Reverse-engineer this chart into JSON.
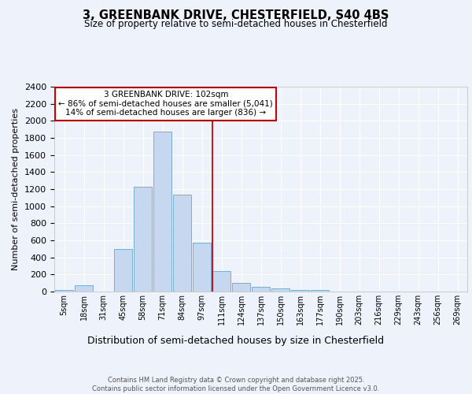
{
  "title1": "3, GREENBANK DRIVE, CHESTERFIELD, S40 4BS",
  "title2": "Size of property relative to semi-detached houses in Chesterfield",
  "xlabel": "Distribution of semi-detached houses by size in Chesterfield",
  "ylabel": "Number of semi-detached properties",
  "bin_labels": [
    "5sqm",
    "18sqm",
    "31sqm",
    "45sqm",
    "58sqm",
    "71sqm",
    "84sqm",
    "97sqm",
    "111sqm",
    "124sqm",
    "137sqm",
    "150sqm",
    "163sqm",
    "177sqm",
    "190sqm",
    "203sqm",
    "216sqm",
    "229sqm",
    "243sqm",
    "256sqm",
    "269sqm"
  ],
  "bar_values": [
    15,
    75,
    0,
    500,
    1230,
    1870,
    1140,
    575,
    240,
    105,
    60,
    35,
    20,
    15,
    0,
    0,
    0,
    0,
    0,
    0,
    0
  ],
  "bar_color": "#c5d8f0",
  "bar_edge_color": "#7aadd4",
  "red_line_x": 7.52,
  "annotation_text": "3 GREENBANK DRIVE: 102sqm\n← 86% of semi-detached houses are smaller (5,041)\n14% of semi-detached houses are larger (836) →",
  "annotation_box_color": "#ffffff",
  "annotation_box_edge_color": "#cc0000",
  "footer_text": "Contains HM Land Registry data © Crown copyright and database right 2025.\nContains public sector information licensed under the Open Government Licence v3.0.",
  "ylim": [
    0,
    2400
  ],
  "yticks": [
    0,
    200,
    400,
    600,
    800,
    1000,
    1200,
    1400,
    1600,
    1800,
    2000,
    2200,
    2400
  ],
  "background_color": "#eef2fa",
  "grid_color": "#ffffff"
}
